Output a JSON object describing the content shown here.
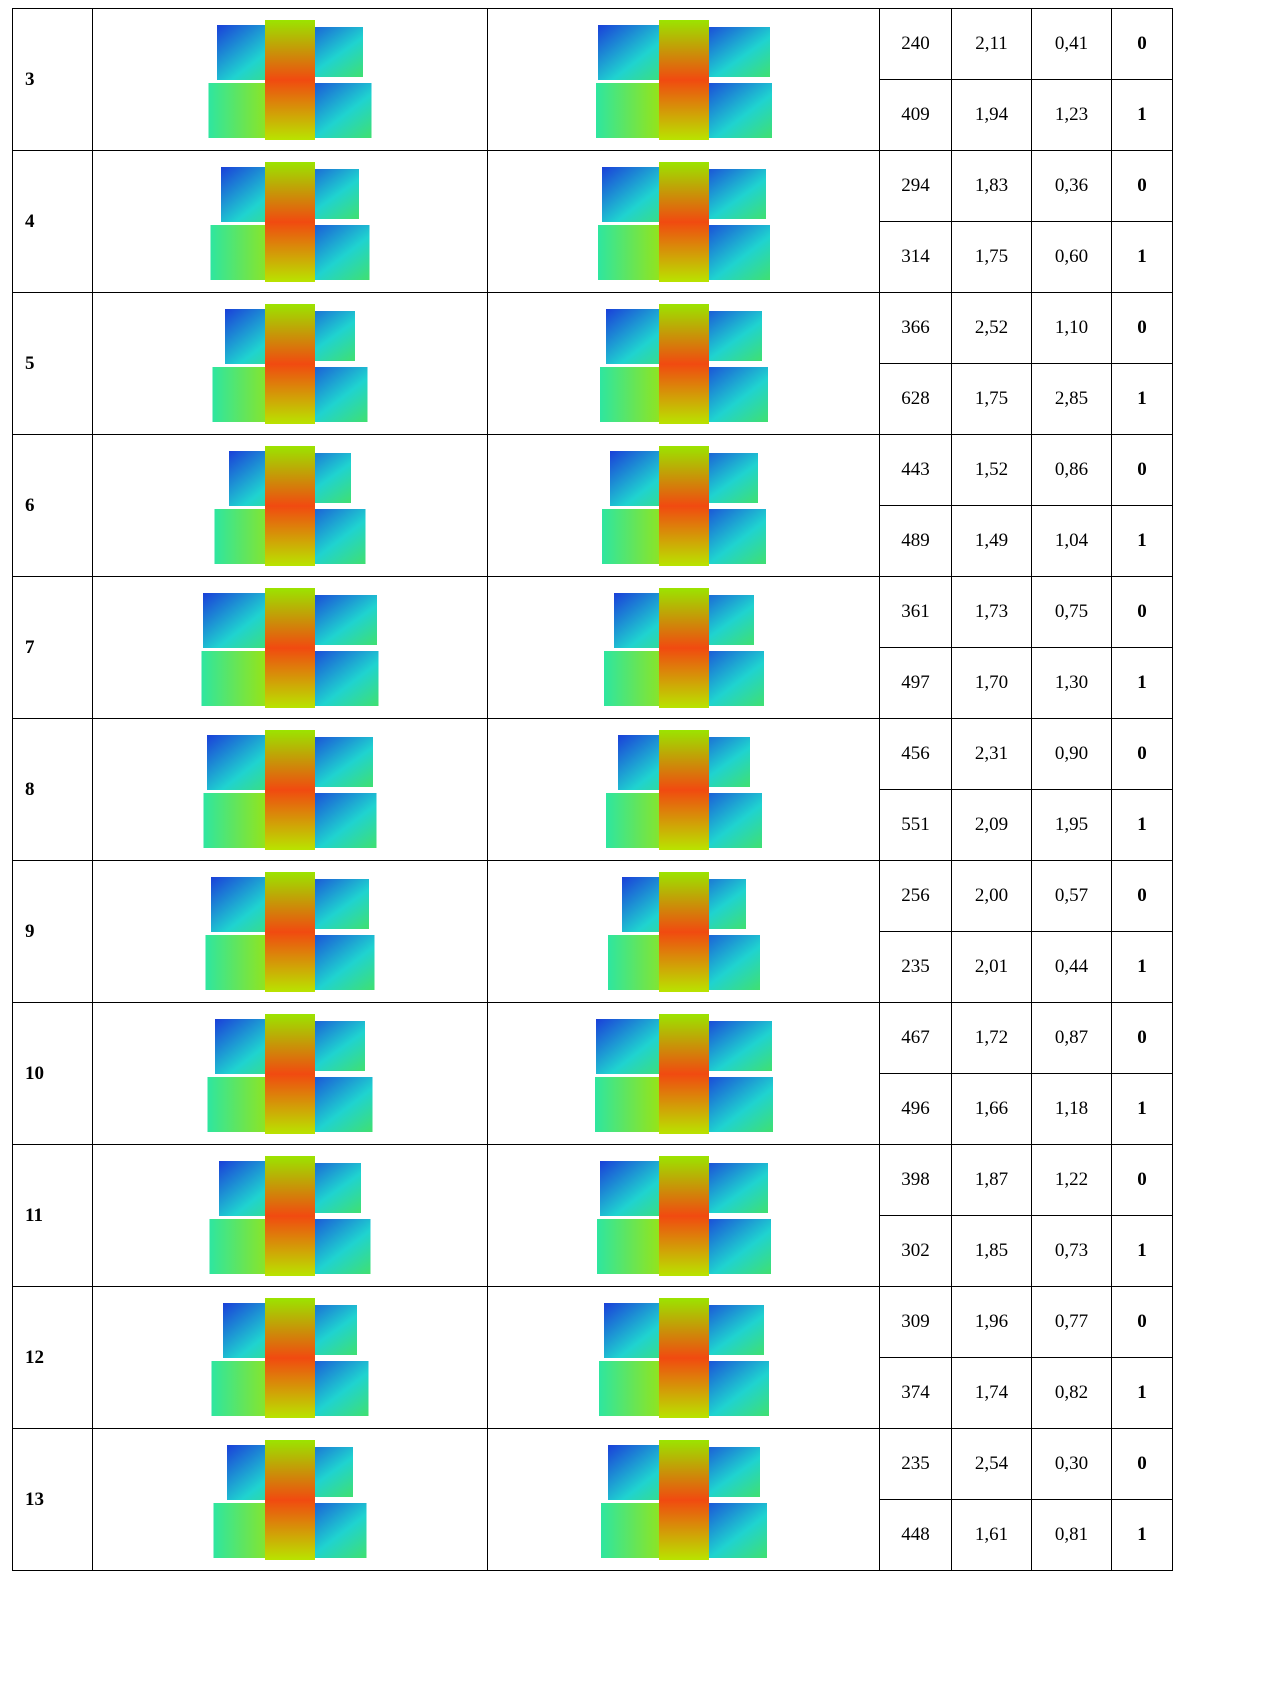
{
  "table": {
    "rows": [
      {
        "id": "3",
        "values": [
          [
            "240",
            "2,11",
            "0,41",
            "0"
          ],
          [
            "409",
            "1,94",
            "1,23",
            "1"
          ]
        ]
      },
      {
        "id": "4",
        "values": [
          [
            "294",
            "1,83",
            "0,36",
            "0"
          ],
          [
            "314",
            "1,75",
            "0,60",
            "1"
          ]
        ]
      },
      {
        "id": "5",
        "values": [
          [
            "366",
            "2,52",
            "1,10",
            "0"
          ],
          [
            "628",
            "1,75",
            "2,85",
            "1"
          ]
        ]
      },
      {
        "id": "6",
        "values": [
          [
            "443",
            "1,52",
            "0,86",
            "0"
          ],
          [
            "489",
            "1,49",
            "1,04",
            "1"
          ]
        ]
      },
      {
        "id": "7",
        "values": [
          [
            "361",
            "1,73",
            "0,75",
            "0"
          ],
          [
            "497",
            "1,70",
            "1,30",
            "1"
          ]
        ]
      },
      {
        "id": "8",
        "values": [
          [
            "456",
            "2,31",
            "0,90",
            "0"
          ],
          [
            "551",
            "2,09",
            "1,95",
            "1"
          ]
        ]
      },
      {
        "id": "9",
        "values": [
          [
            "256",
            "2,00",
            "0,57",
            "0"
          ],
          [
            "235",
            "2,01",
            "0,44",
            "1"
          ]
        ]
      },
      {
        "id": "10",
        "values": [
          [
            "467",
            "1,72",
            "0,87",
            "0"
          ],
          [
            "496",
            "1,66",
            "1,18",
            "1"
          ]
        ]
      },
      {
        "id": "11",
        "values": [
          [
            "398",
            "1,87",
            "1,22",
            "0"
          ],
          [
            "302",
            "1,85",
            "0,73",
            "1"
          ]
        ]
      },
      {
        "id": "12",
        "values": [
          [
            "309",
            "1,96",
            "0,77",
            "0"
          ],
          [
            "374",
            "1,74",
            "0,82",
            "1"
          ]
        ]
      },
      {
        "id": "13",
        "values": [
          [
            "235",
            "2,54",
            "0,30",
            "0"
          ],
          [
            "448",
            "1,61",
            "0,81",
            "1"
          ]
        ]
      }
    ]
  }
}
